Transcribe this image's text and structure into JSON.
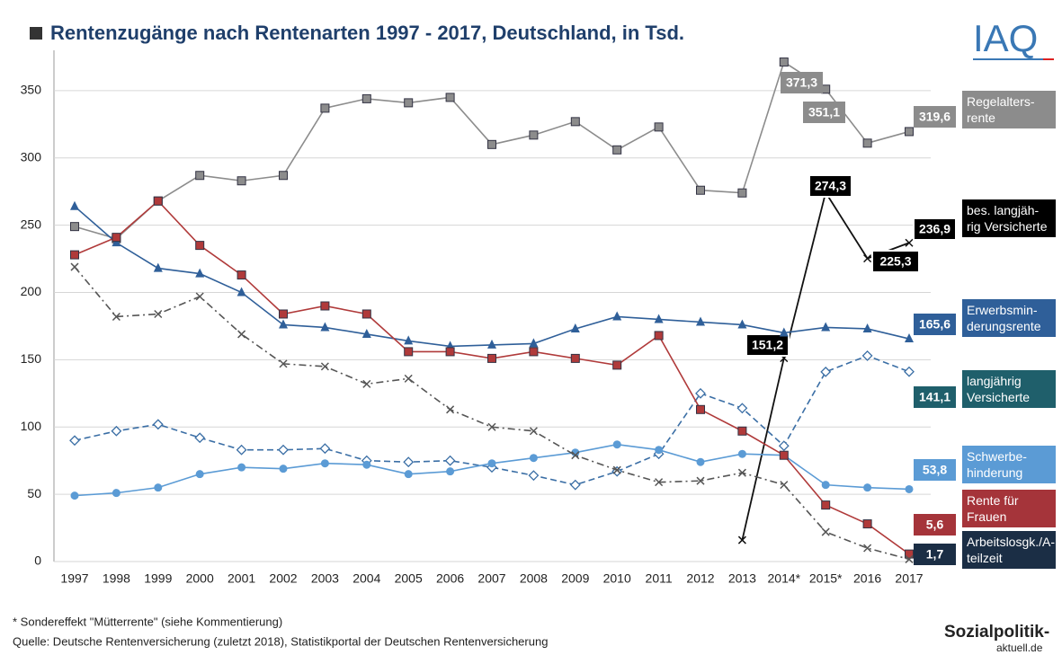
{
  "chart_data": {
    "type": "line",
    "title": "Rentenzugänge nach Rentenarten 1997 - 2017, Deutschland, in Tsd.",
    "categories": [
      "1997",
      "1998",
      "1999",
      "2000",
      "2001",
      "2002",
      "2003",
      "2004",
      "2005",
      "2006",
      "2007",
      "2008",
      "2009",
      "2010",
      "2011",
      "2012",
      "2013",
      "2014*",
      "2015*",
      "2016",
      "2017"
    ],
    "ylim": [
      0,
      380
    ],
    "yticks": [
      0,
      50,
      100,
      150,
      200,
      250,
      300,
      350
    ],
    "grid": true,
    "series": [
      {
        "name": "Regelalters-rente",
        "color": "#8c8c8c",
        "marker": "square",
        "dash": "solid",
        "values": [
          249,
          240,
          268,
          287,
          283,
          287,
          337,
          344,
          341,
          345,
          310,
          317,
          327,
          306,
          323,
          276,
          274,
          371.3,
          351.1,
          311,
          319.6
        ],
        "value_labels": [
          null,
          null,
          null,
          null,
          null,
          null,
          null,
          null,
          null,
          null,
          null,
          null,
          null,
          null,
          null,
          null,
          null,
          "371,3",
          "351,1",
          null,
          "319,6"
        ]
      },
      {
        "name": "bes. langjäh-rig Versicherte",
        "color": "#111111",
        "marker": "x",
        "dash": "solid",
        "values": [
          null,
          null,
          null,
          null,
          null,
          null,
          null,
          null,
          null,
          null,
          null,
          null,
          null,
          null,
          null,
          null,
          16,
          151.2,
          274.3,
          225.3,
          236.9
        ],
        "value_labels": [
          null,
          null,
          null,
          null,
          null,
          null,
          null,
          null,
          null,
          null,
          null,
          null,
          null,
          null,
          null,
          null,
          null,
          "151,2",
          "274,3",
          "225,3",
          "236,9"
        ]
      },
      {
        "name": "Erwerbsmin-derungsrente",
        "color": "#2f5f99",
        "marker": "triangle",
        "dash": "solid",
        "values": [
          264,
          237,
          218,
          214,
          200,
          176,
          174,
          169,
          164,
          160,
          161,
          162,
          173,
          182,
          180,
          178,
          176,
          170,
          174,
          173,
          165.6
        ],
        "value_labels": [
          null,
          null,
          null,
          null,
          null,
          null,
          null,
          null,
          null,
          null,
          null,
          null,
          null,
          null,
          null,
          null,
          null,
          null,
          null,
          null,
          "165,6"
        ]
      },
      {
        "name": "langjährig Versicherte",
        "color": "#3a6ea5",
        "marker": "diamond",
        "dash": "dashed",
        "values": [
          90,
          97,
          102,
          92,
          83,
          83,
          84,
          75,
          74,
          75,
          70,
          64,
          57,
          67,
          80,
          125,
          114,
          86,
          141,
          153,
          141.1
        ],
        "value_labels": [
          null,
          null,
          null,
          null,
          null,
          null,
          null,
          null,
          null,
          null,
          null,
          null,
          null,
          null,
          null,
          null,
          null,
          null,
          null,
          null,
          "141,1"
        ]
      },
      {
        "name": "Schwerbe-hinderung",
        "color": "#5b9bd5",
        "marker": "circle",
        "dash": "solid",
        "values": [
          49,
          51,
          55,
          65,
          70,
          69,
          73,
          72,
          65,
          67,
          73,
          77,
          81,
          87,
          83,
          74,
          80,
          79,
          57,
          55,
          53.8
        ],
        "value_labels": [
          null,
          null,
          null,
          null,
          null,
          null,
          null,
          null,
          null,
          null,
          null,
          null,
          null,
          null,
          null,
          null,
          null,
          null,
          null,
          null,
          "53,8"
        ]
      },
      {
        "name": "Rente für Frauen",
        "color": "#b03a3a",
        "marker": "square",
        "dash": "solid",
        "values": [
          228,
          241,
          268,
          235,
          213,
          184,
          190,
          184,
          156,
          156,
          151,
          156,
          151,
          146,
          168,
          113,
          97,
          79,
          42,
          28,
          5.6
        ],
        "value_labels": [
          null,
          null,
          null,
          null,
          null,
          null,
          null,
          null,
          null,
          null,
          null,
          null,
          null,
          null,
          null,
          null,
          null,
          null,
          null,
          null,
          "5,6"
        ]
      },
      {
        "name": "Arbeitslosgk./A-teilzeit",
        "color": "#1b2e45",
        "marker": "x",
        "dash": "dashdot",
        "values": [
          219,
          182,
          184,
          197,
          169,
          147,
          145,
          132,
          136,
          113,
          100,
          97,
          79,
          68,
          59,
          60,
          66,
          57,
          22,
          10,
          1.7
        ],
        "value_labels": [
          null,
          null,
          null,
          null,
          null,
          null,
          null,
          null,
          null,
          null,
          null,
          null,
          null,
          null,
          null,
          null,
          null,
          null,
          null,
          null,
          "1,7"
        ]
      }
    ],
    "notes": [
      "* Sondereffekt \"Mütterrente\" (siehe Kommentierung)",
      "Quelle: Deutsche Rentenversicherung (zuletzt 2018), Statistikportal der Deutschen Rentenversicherung"
    ],
    "logos": [
      "IAQ",
      "Sozialpolitik-",
      "aktuell.de"
    ]
  }
}
